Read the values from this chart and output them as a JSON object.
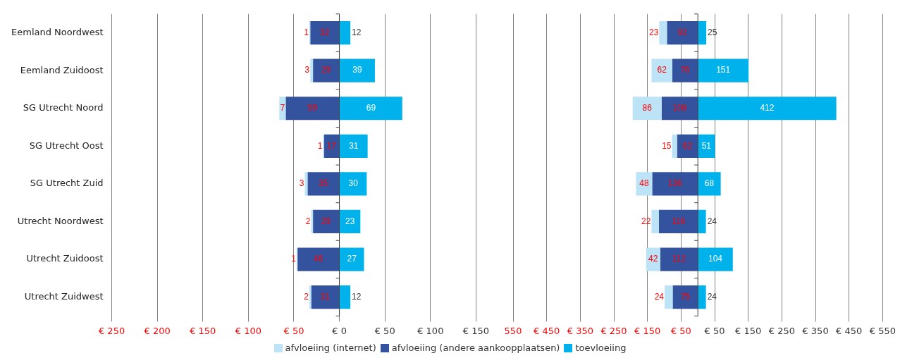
{
  "chart_data": [
    {
      "type": "bar",
      "orientation": "horizontal",
      "grid": "x",
      "legend": "bottom",
      "data_labels": true,
      "categories": [
        "Eemland Noordwest",
        "Eemland Zuidoost",
        "SG Utrecht Noord",
        "SG Utrecht Oost",
        "SG Utrecht Zuid",
        "Utrecht Noordwest",
        "Utrecht Zuidoost",
        "Utrecht Zuidwest"
      ],
      "xlim": [
        -250,
        150
      ],
      "xticks": [
        {
          "value": -250,
          "label": "€ 250"
        },
        {
          "value": -200,
          "label": "€ 200"
        },
        {
          "value": -150,
          "label": "€ 150"
        },
        {
          "value": -100,
          "label": "€ 100"
        },
        {
          "value": -50,
          "label": "€ 50"
        },
        {
          "value": 0,
          "label": "€ 0"
        },
        {
          "value": 50,
          "label": "€ 50"
        },
        {
          "value": 100,
          "label": "€ 100"
        },
        {
          "value": 150,
          "label": "€ 150"
        }
      ],
      "series": [
        {
          "name": "afvloeiing (internet)",
          "color": "#bde3f7",
          "base": [
            -33,
            -32,
            -66,
            -18,
            -38,
            -31,
            -47,
            -33
          ],
          "values": [
            1,
            3,
            7,
            1,
            3,
            2,
            1,
            2
          ]
        },
        {
          "name": "afvloeiing (andere aankoopplaatsen)",
          "color": "#34539f",
          "base": [
            -32,
            -29,
            -59,
            -17,
            -35,
            -29,
            -46,
            -31
          ],
          "values": [
            32,
            29,
            59,
            17,
            35,
            29,
            46,
            31
          ]
        },
        {
          "name": "toevloeiing",
          "color": "#00b2ec",
          "values": [
            12,
            39,
            69,
            31,
            30,
            23,
            27,
            12
          ]
        }
      ]
    },
    {
      "type": "bar",
      "orientation": "horizontal",
      "grid": "x",
      "data_labels": true,
      "categories": [
        null,
        null,
        null,
        null,
        null,
        null,
        null,
        null
      ],
      "xlim": [
        -550,
        550
      ],
      "xticks": [
        {
          "value": -550,
          "label": "550"
        },
        {
          "value": -450,
          "label": "€ 450"
        },
        {
          "value": -350,
          "label": "€ 350"
        },
        {
          "value": -250,
          "label": "€ 250"
        },
        {
          "value": -150,
          "label": "€ 150"
        },
        {
          "value": -50,
          "label": "€ 50"
        },
        {
          "value": 50,
          "label": "€ 50"
        },
        {
          "value": 150,
          "label": "€ 150"
        },
        {
          "value": 250,
          "label": "€ 250"
        },
        {
          "value": 350,
          "label": "€ 350"
        },
        {
          "value": 450,
          "label": "€ 450"
        },
        {
          "value": 550,
          "label": "€ 550"
        }
      ],
      "series": [
        {
          "color": "#bde3f7",
          "base": [
            -115,
            -138,
            -194,
            -77,
            -184,
            -138,
            -154,
            -99
          ],
          "values": [
            23,
            62,
            86,
            15,
            48,
            22,
            42,
            24
          ]
        },
        {
          "color": "#34539f",
          "base": [
            -92,
            -76,
            -108,
            -62,
            -136,
            -116,
            -112,
            -75
          ],
          "values": [
            92,
            76,
            108,
            62,
            136,
            116,
            112,
            75
          ]
        },
        {
          "color": "#00b2ec",
          "values": [
            25,
            151,
            412,
            51,
            68,
            24,
            104,
            24
          ]
        }
      ]
    }
  ]
}
